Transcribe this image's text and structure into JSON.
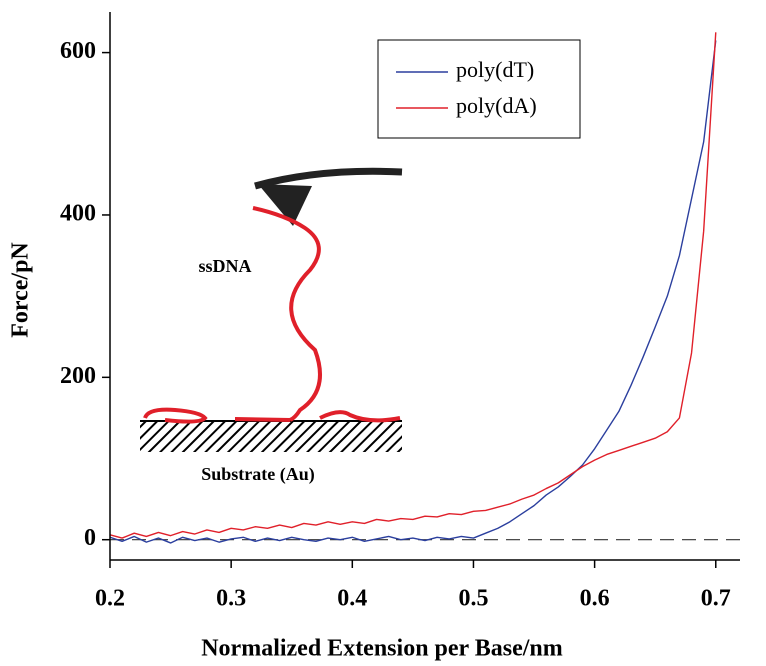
{
  "chart_data": {
    "type": "line",
    "x_label": "Normalized Extension per Base/nm",
    "y_label": "Force/pN",
    "annotations": [
      "ssDNA",
      "Substrate (Au)"
    ],
    "x": [
      0.2,
      0.21,
      0.22,
      0.23,
      0.24,
      0.25,
      0.26,
      0.27,
      0.28,
      0.29,
      0.3,
      0.31,
      0.32,
      0.33,
      0.34,
      0.35,
      0.36,
      0.37,
      0.38,
      0.39,
      0.4,
      0.41,
      0.42,
      0.43,
      0.44,
      0.45,
      0.46,
      0.47,
      0.48,
      0.49,
      0.5,
      0.51,
      0.52,
      0.53,
      0.54,
      0.55,
      0.56,
      0.57,
      0.58,
      0.59,
      0.6,
      0.61,
      0.62,
      0.63,
      0.64,
      0.65,
      0.66,
      0.67,
      0.68,
      0.69,
      0.7
    ],
    "series": [
      {
        "name": "poly(dT)",
        "color": "#2b3f9e",
        "values": [
          3,
          -2,
          4,
          -3,
          2,
          -4,
          3,
          -1,
          2,
          -3,
          1,
          3,
          -2,
          2,
          -1,
          3,
          0,
          -2,
          2,
          0,
          3,
          -2,
          1,
          4,
          0,
          2,
          -1,
          3,
          1,
          4,
          2,
          8,
          14,
          22,
          32,
          42,
          55,
          65,
          78,
          92,
          112,
          135,
          158,
          190,
          225,
          262,
          300,
          350,
          420,
          490,
          615
        ]
      },
      {
        "name": "poly(dA)",
        "color": "#e0202a",
        "values": [
          6,
          2,
          8,
          4,
          9,
          5,
          10,
          7,
          12,
          9,
          14,
          12,
          16,
          14,
          18,
          15,
          20,
          18,
          22,
          19,
          22,
          20,
          25,
          23,
          26,
          25,
          29,
          28,
          32,
          31,
          35,
          36,
          40,
          44,
          50,
          55,
          63,
          70,
          80,
          90,
          98,
          105,
          110,
          115,
          120,
          125,
          133,
          150,
          230,
          380,
          625
        ]
      }
    ],
    "xlim": [
      0.2,
      0.72
    ],
    "ylim": [
      -25,
      650
    ],
    "xticks": [
      0.2,
      0.3,
      0.4,
      0.5,
      0.6,
      0.7
    ],
    "yticks": [
      0,
      200,
      400,
      600
    ],
    "zero_line": true,
    "legend": "upper right"
  }
}
